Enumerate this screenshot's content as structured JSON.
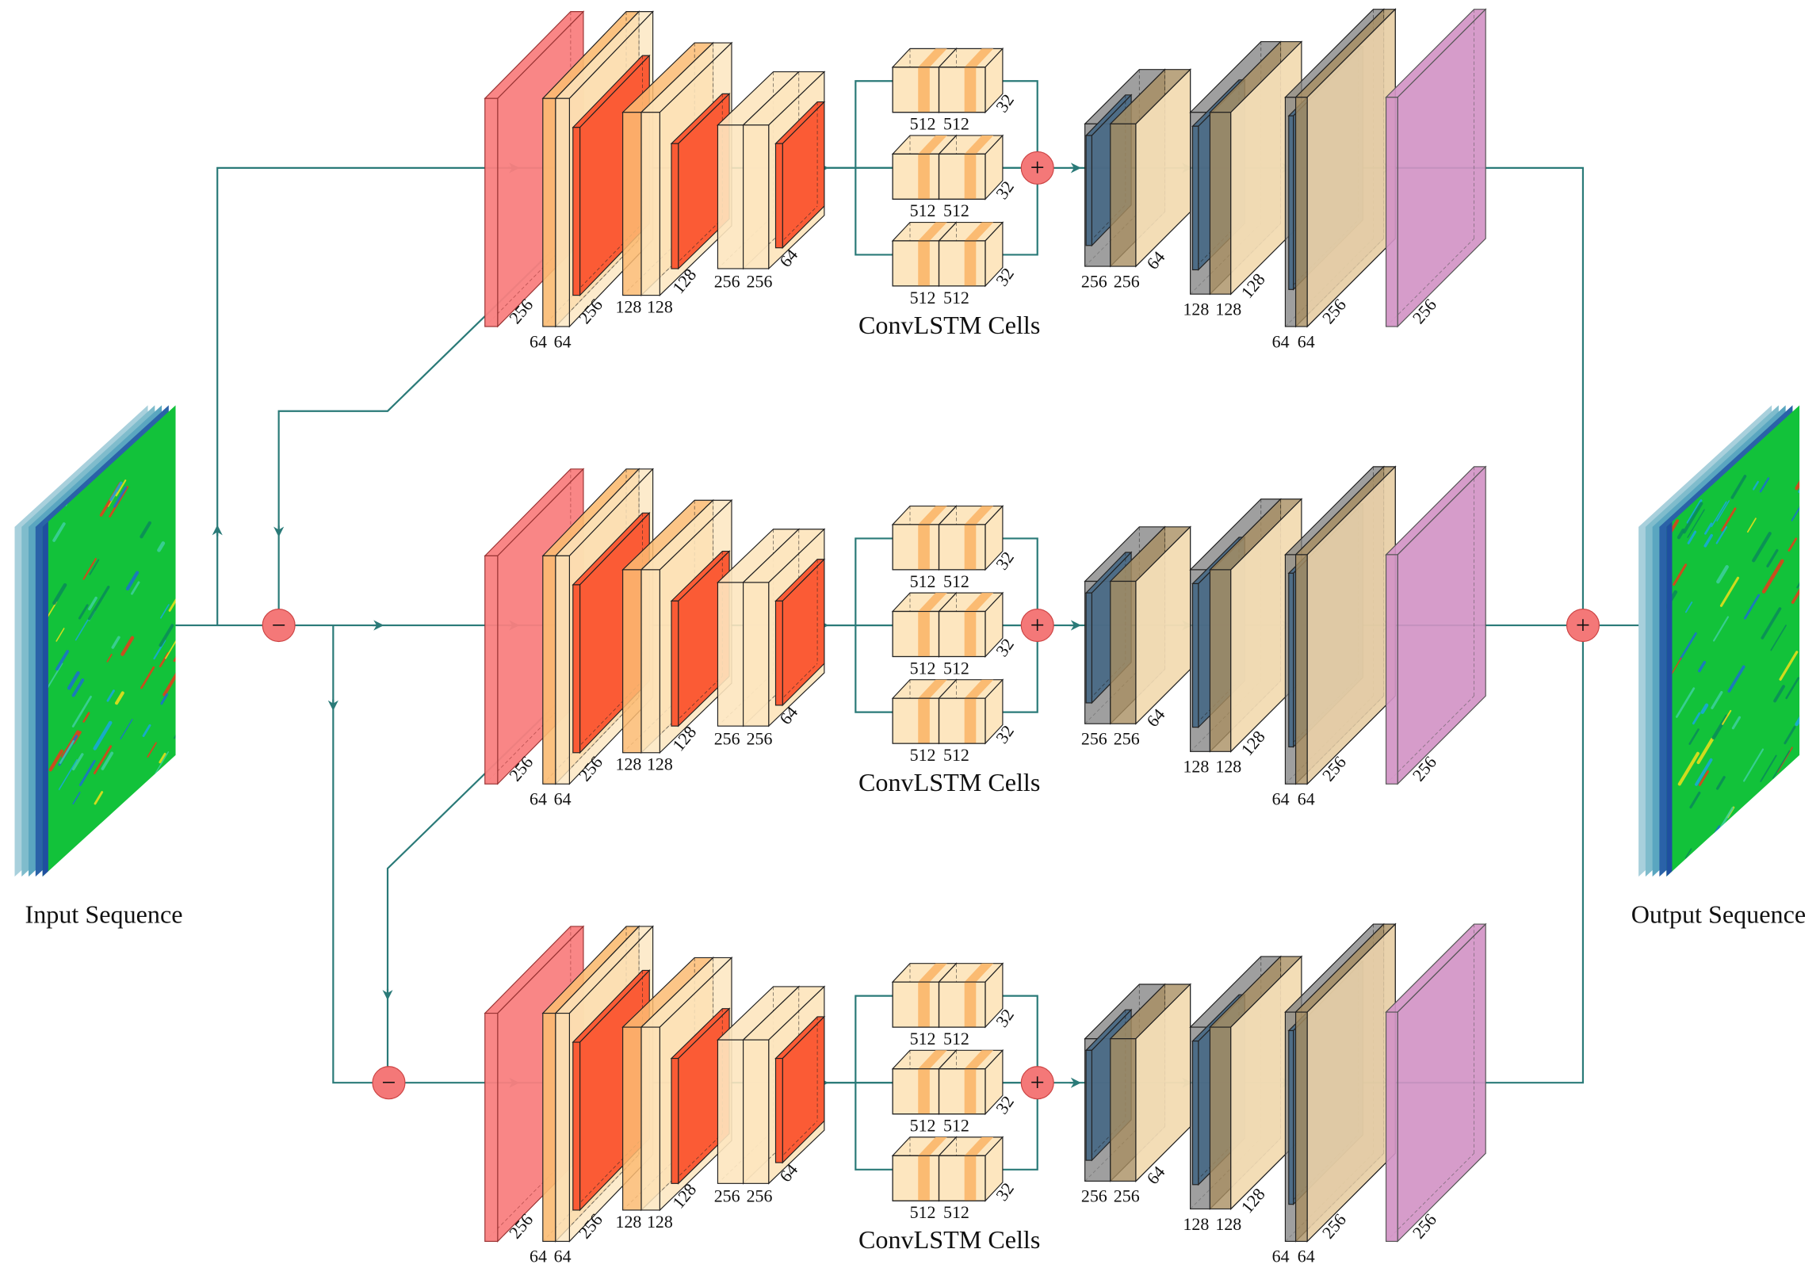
{
  "input_label": "Input Sequence",
  "output_label": "Output Sequence",
  "operators": {
    "subtract": "−",
    "add": "+"
  },
  "encoder": {
    "input_depth": "256",
    "block1": {
      "widths": [
        "64",
        "64"
      ],
      "depth": "256"
    },
    "block2": {
      "widths": [
        "128",
        "128"
      ],
      "depth": "128"
    },
    "block3": {
      "widths": [
        "256",
        "256"
      ],
      "depth": "64"
    }
  },
  "cells": {
    "widths": [
      "512",
      "512"
    ],
    "depth": "32",
    "title": "ConvLSTM Cells"
  },
  "decoder": {
    "block1": {
      "widths": [
        "256",
        "256"
      ],
      "depth": "64"
    },
    "block2": {
      "widths": [
        "128",
        "128"
      ],
      "depth": "128"
    },
    "block3": {
      "widths": [
        "64",
        "64"
      ],
      "depth": "256"
    },
    "output_depth": "256"
  },
  "colors": {
    "line": "#2a7a78",
    "input_slab": "#f97f7f",
    "conv_light": "#fde6bf",
    "conv_dark": "#fbbb72",
    "pool": "#fb5b35",
    "deconv_gray": "#7f7f7f",
    "deconv_tan": "#a98e62",
    "deconv_blue": "#4a6a86",
    "output_slab": "#d394c6",
    "operator": "#f47878"
  }
}
